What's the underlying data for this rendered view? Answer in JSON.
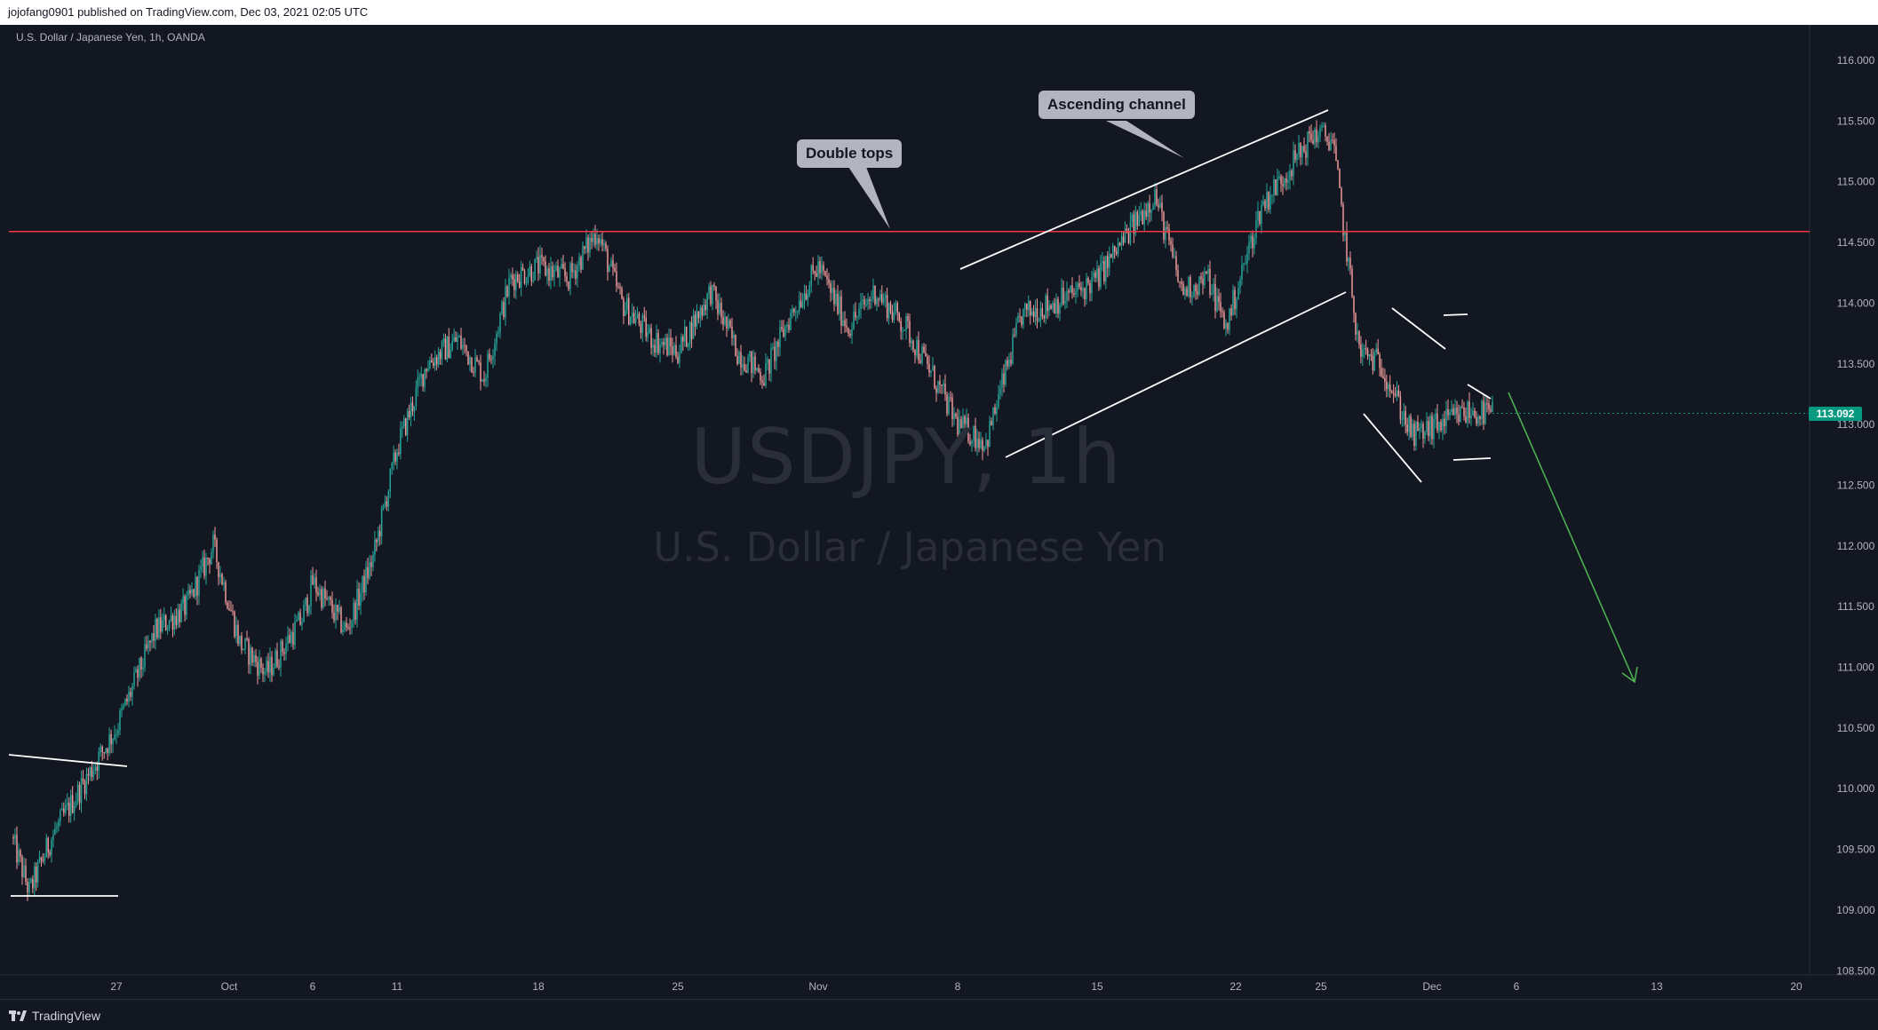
{
  "header": {
    "publisher_line": "jojofang0901 published on TradingView.com, Dec 03, 2021 02:05 UTC"
  },
  "footer": {
    "brand": "TradingView"
  },
  "chart": {
    "symbol_line": "U.S. Dollar / Japanese Yen, 1h, OANDA",
    "watermark_symbol": "USDJPY, 1h",
    "watermark_name": "U.S. Dollar / Japanese Yen",
    "last_price_label": "113.092"
  },
  "annotations": {
    "double_tops": "Double tops",
    "ascending_channel": "Ascending channel"
  },
  "colors": {
    "background": "#131722",
    "up_candle": "#26a69a",
    "down_candle": "#ef9a9a",
    "resistance_line": "#f23645",
    "drawing_lines": "#ffffff",
    "projection_arrow": "#4caf50",
    "last_price_badge": "#089981"
  },
  "chart_data": {
    "type": "candlestick",
    "title": "",
    "symbol": "USDJPY",
    "interval": "1h",
    "x_tick_labels": [
      "27",
      "Oct",
      "6",
      "11",
      "18",
      "25",
      "Nov",
      "8",
      "15",
      "22",
      "25",
      "Dec",
      "6",
      "13",
      "20"
    ],
    "y_tick_labels": [
      "116.000",
      "115.500",
      "115.000",
      "114.500",
      "114.000",
      "113.500",
      "113.000",
      "112.500",
      "112.000",
      "111.500",
      "111.000",
      "110.500",
      "110.000",
      "109.500",
      "109.000",
      "108.500"
    ],
    "ylim": [
      108.5,
      116.2
    ],
    "grid": false,
    "last_price": 113.092,
    "resistance_level": 114.59,
    "approx_close_path": [
      {
        "date": "Sep 22",
        "price": 109.6
      },
      {
        "date": "Sep 23",
        "price": 109.15
      },
      {
        "date": "Sep 24",
        "price": 109.6
      },
      {
        "date": "Sep 27",
        "price": 110.5
      },
      {
        "date": "Sep 28",
        "price": 111.3
      },
      {
        "date": "Sep 29",
        "price": 111.5
      },
      {
        "date": "Sep 30",
        "price": 112.0
      },
      {
        "date": "Oct 1",
        "price": 111.2
      },
      {
        "date": "Oct 4",
        "price": 110.95
      },
      {
        "date": "Oct 5",
        "price": 111.4
      },
      {
        "date": "Oct 6",
        "price": 111.7
      },
      {
        "date": "Oct 7",
        "price": 111.3
      },
      {
        "date": "Oct 8",
        "price": 111.9
      },
      {
        "date": "Oct 11",
        "price": 112.8
      },
      {
        "date": "Oct 12",
        "price": 113.5
      },
      {
        "date": "Oct 13",
        "price": 113.7
      },
      {
        "date": "Oct 14",
        "price": 113.4
      },
      {
        "date": "Oct 15",
        "price": 114.2
      },
      {
        "date": "Oct 18",
        "price": 114.3
      },
      {
        "date": "Oct 19",
        "price": 114.2
      },
      {
        "date": "Oct 20",
        "price": 114.6
      },
      {
        "date": "Oct 21",
        "price": 114.0
      },
      {
        "date": "Oct 22",
        "price": 113.7
      },
      {
        "date": "Oct 25",
        "price": 113.6
      },
      {
        "date": "Oct 26",
        "price": 114.1
      },
      {
        "date": "Oct 27",
        "price": 113.6
      },
      {
        "date": "Oct 28",
        "price": 113.4
      },
      {
        "date": "Oct 29",
        "price": 113.9
      },
      {
        "date": "Nov 1",
        "price": 114.3
      },
      {
        "date": "Nov 2",
        "price": 113.8
      },
      {
        "date": "Nov 3",
        "price": 114.1
      },
      {
        "date": "Nov 4",
        "price": 113.8
      },
      {
        "date": "Nov 5",
        "price": 113.4
      },
      {
        "date": "Nov 8",
        "price": 113.0
      },
      {
        "date": "Nov 9",
        "price": 112.85
      },
      {
        "date": "Nov 10",
        "price": 113.9
      },
      {
        "date": "Nov 11",
        "price": 114.0
      },
      {
        "date": "Nov 12",
        "price": 114.1
      },
      {
        "date": "Nov 15",
        "price": 114.2
      },
      {
        "date": "Nov 16",
        "price": 114.9
      },
      {
        "date": "Nov 17",
        "price": 114.1
      },
      {
        "date": "Nov 18",
        "price": 114.2
      },
      {
        "date": "Nov 19",
        "price": 113.8
      },
      {
        "date": "Nov 22",
        "price": 114.8
      },
      {
        "date": "Nov 23",
        "price": 115.1
      },
      {
        "date": "Nov 24",
        "price": 115.4
      },
      {
        "date": "Nov 25",
        "price": 115.35
      },
      {
        "date": "Nov 26",
        "price": 113.6
      },
      {
        "date": "Nov 29",
        "price": 113.5
      },
      {
        "date": "Nov 30",
        "price": 112.9
      },
      {
        "date": "Dec 1",
        "price": 113.0
      },
      {
        "date": "Dec 2",
        "price": 113.1
      },
      {
        "date": "Dec 3",
        "price": 113.092
      }
    ]
  }
}
